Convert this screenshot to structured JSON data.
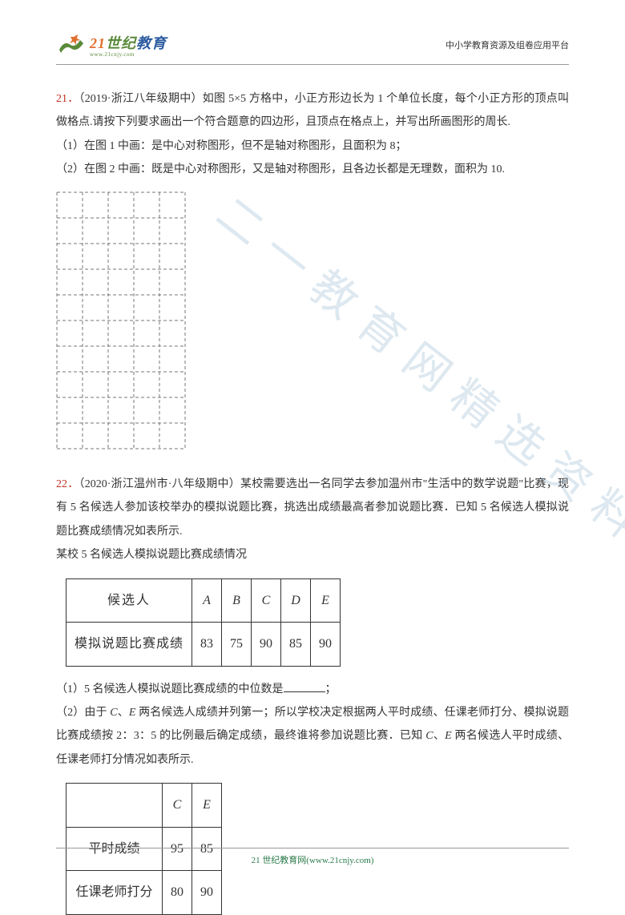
{
  "header": {
    "logo_main": "21世纪教育",
    "logo_sub": "www.21cnjy.com",
    "right_text": "中小学教育资源及组卷应用平台"
  },
  "watermark": "二一教育网精选资料",
  "q21": {
    "num": "21．",
    "source": "（2019·浙江八年级期中）如图 5×5 方格中，小正方形边长为 1 个单位长度，每个小正方形的顶点叫做格点.请按下列要求画出一个符合题意的四边形，且顶点在格点上，并写出所画图形的周长.",
    "item1": "（1）在图 1 中画：是中心对称图形，但不是轴对称图形，且面积为 8；",
    "item2": "（2）在图 2 中画：既是中心对称图形，又是轴对称图形，且各边长都是无理数，面积为 10.",
    "grid": {
      "cols": 5,
      "rows": 10,
      "cell_size": 32,
      "dash": "4,3",
      "stroke": "#777"
    }
  },
  "q22": {
    "num": "22．",
    "source": "（2020·浙江温州市·八年级期中）某校需要选出一名同学去参加温州市\"生活中的数学说题\"比赛，现有 5 名候选人参加该校举办的模拟说题比赛，挑选出成绩最高者参加说题比赛．已知 5 名候选人模拟说题比赛成绩情况如表所示.",
    "caption": "某校 5 名候选人模拟说题比赛成绩情况",
    "table1": {
      "row1_label": "候选人",
      "row1_vals": [
        "A",
        "B",
        "C",
        "D",
        "E"
      ],
      "row2_label": "模拟说题比赛成绩",
      "row2_vals": [
        "83",
        "75",
        "90",
        "85",
        "90"
      ]
    },
    "item1_a": "（1）5 名候选人模拟说题比赛成绩的中位数是",
    "item1_b": "；",
    "item2": "（2）由于 C、E 两名候选人成绩并列第一；所以学校决定根据两人平时成绩、任课老师打分、模拟说题比赛成绩按 2：3：5 的比例最后确定成绩，最终谁将参加说题比赛．已知 C、E 两名候选人平时成绩、任课老师打分情况如表所示.",
    "table2": {
      "cols": [
        "C",
        "E"
      ],
      "row1_label": "平时成绩",
      "row1_vals": [
        "95",
        "85"
      ],
      "row2_label": "任课老师打分",
      "row2_vals": [
        "80",
        "90"
      ]
    }
  },
  "footer": "21 世纪教育网(www.21cnjy.com)"
}
